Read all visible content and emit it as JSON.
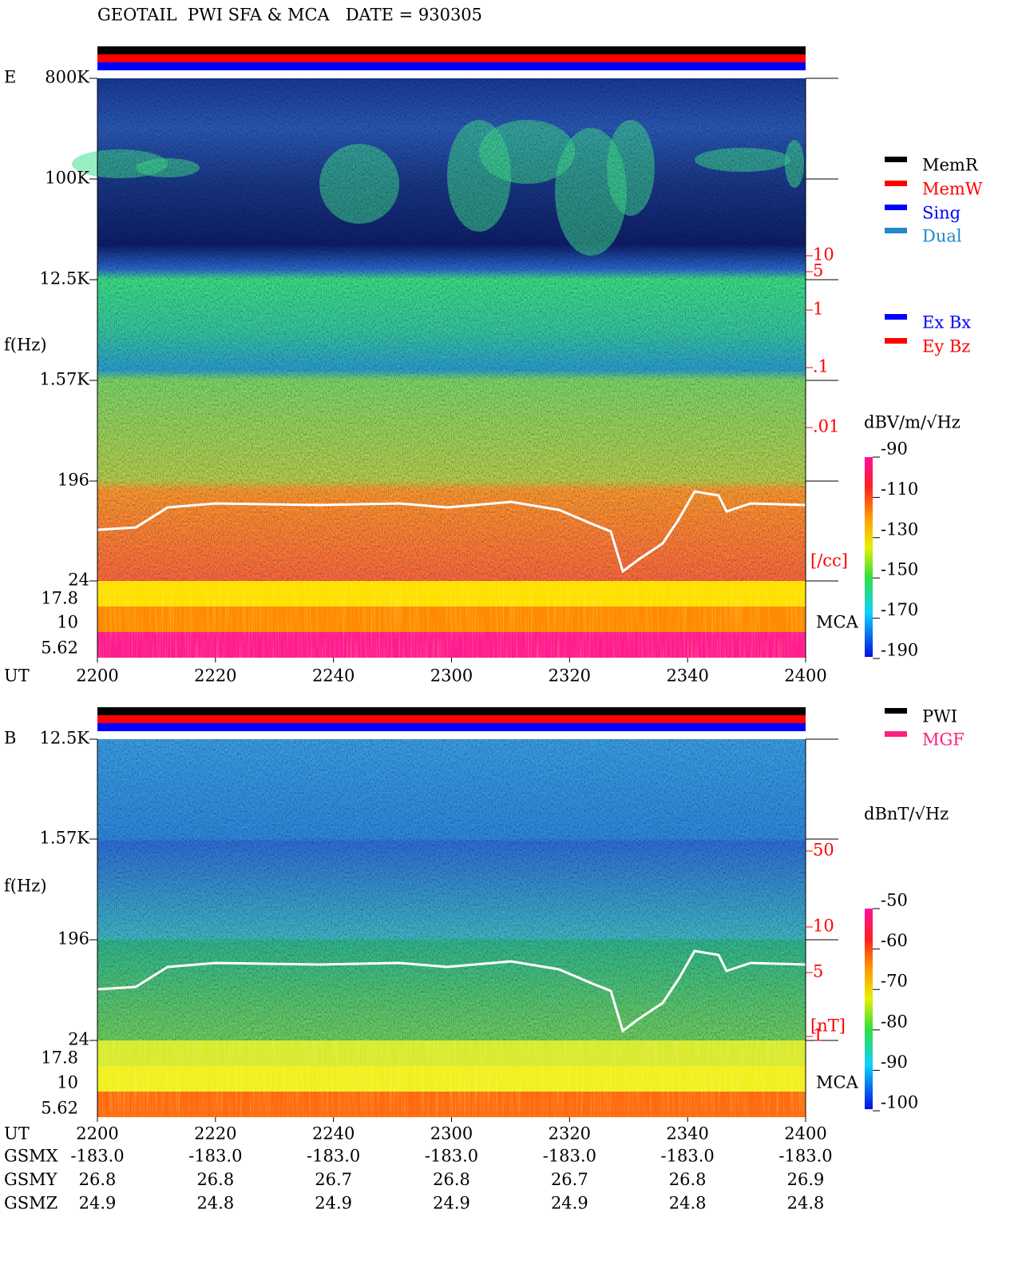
{
  "header": {
    "title": "GEOTAIL  PWI SFA & MCA   DATE = 930305"
  },
  "panels": [
    {
      "label": "E",
      "axis_label": "f(Hz)",
      "freq_labels": [
        "800K",
        "100K",
        "12.5K",
        "1.57K",
        "196",
        "24"
      ],
      "mca_labels": [
        "17.8",
        "10",
        "5.62"
      ],
      "density_labels": [
        "10",
        "5",
        "1",
        ".1",
        ".01"
      ],
      "density_unit": "[/cc]",
      "mca_tag": "MCA",
      "colorbar_unit": "dBV/m/√Hz",
      "colorbar_labels": [
        "-90",
        "-110",
        "-130",
        "-150",
        "-170",
        "-190"
      ],
      "ut_label": "UT",
      "time_labels": [
        "2200",
        "2220",
        "2240",
        "2300",
        "2320",
        "2340",
        "2400"
      ],
      "legend_groups": [
        [
          {
            "label": "MemR",
            "color": "#000000"
          },
          {
            "label": "MemW",
            "color": "#ff0000"
          },
          {
            "label": "Sing",
            "color": "#0000ff"
          },
          {
            "label": "Dual",
            "color": "#2288cc"
          }
        ],
        [
          {
            "label": "Ex Bx",
            "color": "#0000ff"
          },
          {
            "label": "Ey Bz",
            "color": "#ff0000"
          }
        ]
      ]
    },
    {
      "label": "B",
      "axis_label": "f(Hz)",
      "freq_labels": [
        "12.5K",
        "1.57K",
        "196",
        "24"
      ],
      "mca_labels": [
        "17.8",
        "10",
        "5.62"
      ],
      "density_labels": [
        "50",
        "10",
        "5",
        "1"
      ],
      "density_unit": "[nT]",
      "mca_tag": "MCA",
      "colorbar_unit": "dBnT/√Hz",
      "colorbar_labels": [
        "-50",
        "-60",
        "-70",
        "-80",
        "-90",
        "-100"
      ],
      "ut_label": "UT",
      "time_labels": [
        "2200",
        "2220",
        "2240",
        "2300",
        "2320",
        "2340",
        "2400"
      ],
      "legend_groups": [
        [
          {
            "label": "PWI",
            "color": "#000000"
          },
          {
            "label": "MGF",
            "color": "#ff1f7f"
          }
        ]
      ]
    }
  ],
  "orbit": [
    {
      "name": "GSMX",
      "values": [
        "-183.0",
        "-183.0",
        "-183.0",
        "-183.0",
        "-183.0",
        "-183.0",
        "-183.0"
      ]
    },
    {
      "name": "GSMY",
      "values": [
        "26.8",
        "26.8",
        "26.7",
        "26.8",
        "26.7",
        "26.8",
        "26.9"
      ]
    },
    {
      "name": "GSMZ",
      "values": [
        "24.9",
        "24.8",
        "24.9",
        "24.9",
        "24.9",
        "24.8",
        "24.8"
      ]
    }
  ]
}
